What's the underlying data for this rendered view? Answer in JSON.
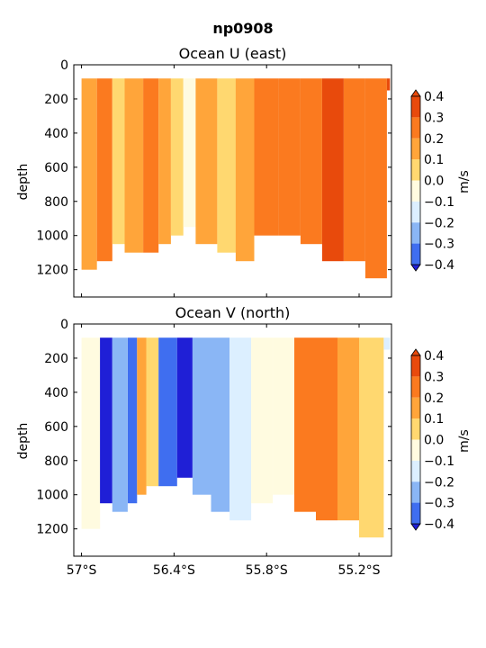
{
  "chart_data": {
    "title": "np0908",
    "colorbar_levels": [
      -0.4,
      -0.3,
      -0.2,
      -0.1,
      0.0,
      0.1,
      0.2,
      0.3,
      0.4
    ],
    "colorbar_tick_labels": [
      "0.4",
      "0.3",
      "0.2",
      "0.1",
      "0.0",
      "−0.1",
      "−0.2",
      "−0.3",
      "−0.4"
    ],
    "colorbar_colors": [
      "#1f1fd6",
      "#3f6ef0",
      "#8ab6f5",
      "#dcefff",
      "#fffbe0",
      "#ffd870",
      "#ffa53a",
      "#fb7a1f",
      "#e84a0c"
    ],
    "x_ticks": [
      "57°S",
      "56.4°S",
      "55.8°S",
      "55.2°S"
    ],
    "x_tick_values": [
      -57.0,
      -56.4,
      -55.8,
      -55.2
    ],
    "xlim": [
      -57.05,
      -54.99
    ],
    "ylim": [
      1360,
      0
    ],
    "y_ticks": [
      "0",
      "200",
      "400",
      "600",
      "800",
      "1000",
      "1200"
    ],
    "y_tick_values": [
      0,
      200,
      400,
      600,
      800,
      1000,
      1200
    ],
    "panels": [
      {
        "type": "heatmap",
        "title": "Ocean U (east)",
        "ylabel": "depth",
        "colorbar_label": "m/s",
        "columns": [
          {
            "x0": -57.0,
            "x1": -56.9,
            "level": 0.2,
            "bottom": 1200
          },
          {
            "x0": -56.9,
            "x1": -56.8,
            "level": 0.3,
            "bottom": 1150
          },
          {
            "x0": -56.8,
            "x1": -56.72,
            "level": 0.1,
            "bottom": 1050
          },
          {
            "x0": -56.72,
            "x1": -56.6,
            "level": 0.2,
            "bottom": 1100
          },
          {
            "x0": -56.6,
            "x1": -56.5,
            "level": 0.3,
            "bottom": 1100
          },
          {
            "x0": -56.5,
            "x1": -56.42,
            "level": 0.2,
            "bottom": 1050
          },
          {
            "x0": -56.42,
            "x1": -56.34,
            "level": 0.1,
            "bottom": 1000
          },
          {
            "x0": -56.34,
            "x1": -56.26,
            "level": 0.0,
            "bottom": 950
          },
          {
            "x0": -56.26,
            "x1": -56.12,
            "level": 0.2,
            "bottom": 1050
          },
          {
            "x0": -56.12,
            "x1": -56.0,
            "level": 0.1,
            "bottom": 1100
          },
          {
            "x0": -56.0,
            "x1": -55.88,
            "level": 0.2,
            "bottom": 1150
          },
          {
            "x0": -55.88,
            "x1": -55.72,
            "level": 0.3,
            "bottom": 1000
          },
          {
            "x0": -55.72,
            "x1": -55.58,
            "level": 0.3,
            "bottom": 1000
          },
          {
            "x0": -55.58,
            "x1": -55.44,
            "level": 0.3,
            "bottom": 1050
          },
          {
            "x0": -55.44,
            "x1": -55.3,
            "level": 0.4,
            "bottom": 1150
          },
          {
            "x0": -55.3,
            "x1": -55.16,
            "level": 0.3,
            "bottom": 1150
          },
          {
            "x0": -55.16,
            "x1": -55.02,
            "level": 0.3,
            "bottom": 1250
          },
          {
            "x0": -55.02,
            "x1": -55.0,
            "level": 0.4,
            "bottom": 150
          }
        ]
      },
      {
        "type": "heatmap",
        "title": "Ocean V (north)",
        "ylabel": "depth",
        "colorbar_label": "m/s",
        "columns": [
          {
            "x0": -57.0,
            "x1": -56.88,
            "level": 0.0,
            "bottom": 1200
          },
          {
            "x0": -56.88,
            "x1": -56.8,
            "level": -0.4,
            "bottom": 1050
          },
          {
            "x0": -56.8,
            "x1": -56.7,
            "level": -0.2,
            "bottom": 1100
          },
          {
            "x0": -56.7,
            "x1": -56.64,
            "level": -0.3,
            "bottom": 1050
          },
          {
            "x0": -56.64,
            "x1": -56.58,
            "level": 0.2,
            "bottom": 1000
          },
          {
            "x0": -56.58,
            "x1": -56.5,
            "level": 0.1,
            "bottom": 950
          },
          {
            "x0": -56.5,
            "x1": -56.38,
            "level": -0.3,
            "bottom": 950
          },
          {
            "x0": -56.38,
            "x1": -56.28,
            "level": -0.4,
            "bottom": 900
          },
          {
            "x0": -56.28,
            "x1": -56.16,
            "level": -0.2,
            "bottom": 1000
          },
          {
            "x0": -56.16,
            "x1": -56.04,
            "level": -0.2,
            "bottom": 1100
          },
          {
            "x0": -56.04,
            "x1": -55.9,
            "level": -0.1,
            "bottom": 1150
          },
          {
            "x0": -55.9,
            "x1": -55.76,
            "level": 0.0,
            "bottom": 1050
          },
          {
            "x0": -55.76,
            "x1": -55.62,
            "level": 0.0,
            "bottom": 1000
          },
          {
            "x0": -55.62,
            "x1": -55.48,
            "level": 0.3,
            "bottom": 1100
          },
          {
            "x0": -55.48,
            "x1": -55.34,
            "level": 0.3,
            "bottom": 1150
          },
          {
            "x0": -55.34,
            "x1": -55.2,
            "level": 0.2,
            "bottom": 1150
          },
          {
            "x0": -55.2,
            "x1": -55.04,
            "level": 0.1,
            "bottom": 1250
          },
          {
            "x0": -55.04,
            "x1": -55.0,
            "level": -0.1,
            "bottom": 150
          }
        ]
      }
    ]
  }
}
